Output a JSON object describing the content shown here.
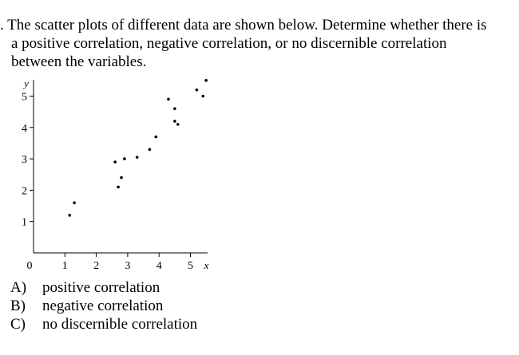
{
  "question": {
    "lines": [
      ". The scatter plots of different data are shown below. Determine whether there is",
      "a positive correlation, negative correlation, or no discernible correlation",
      "between the variables."
    ]
  },
  "chart_data": {
    "type": "scatter",
    "xlabel": "x",
    "ylabel": "y",
    "x_ticks": [
      0,
      1,
      2,
      3,
      4,
      5
    ],
    "y_ticks": [
      1,
      2,
      3,
      4,
      5
    ],
    "tick_labels_x": [
      "0",
      "1",
      "2",
      "3",
      "4",
      "5"
    ],
    "tick_labels_y": [
      "1",
      "2",
      "3",
      "4",
      "5"
    ],
    "xlim": [
      0,
      5.5
    ],
    "ylim": [
      0,
      5.5
    ],
    "grid": false,
    "points": [
      {
        "x": 1.15,
        "y": 1.2
      },
      {
        "x": 1.3,
        "y": 1.6
      },
      {
        "x": 2.6,
        "y": 2.9
      },
      {
        "x": 2.7,
        "y": 2.1
      },
      {
        "x": 2.8,
        "y": 2.4
      },
      {
        "x": 2.9,
        "y": 3.0
      },
      {
        "x": 3.3,
        "y": 3.05
      },
      {
        "x": 3.7,
        "y": 3.3
      },
      {
        "x": 3.9,
        "y": 3.7
      },
      {
        "x": 4.3,
        "y": 4.9
      },
      {
        "x": 4.5,
        "y": 4.6
      },
      {
        "x": 4.5,
        "y": 4.2
      },
      {
        "x": 4.6,
        "y": 4.1
      },
      {
        "x": 5.2,
        "y": 5.2
      },
      {
        "x": 5.4,
        "y": 5.0
      },
      {
        "x": 5.5,
        "y": 5.5
      }
    ]
  },
  "options": [
    {
      "letter": "A)",
      "text": "positive correlation"
    },
    {
      "letter": "B)",
      "text": "negative correlation"
    },
    {
      "letter": "C)",
      "text": "no discernible correlation"
    }
  ]
}
